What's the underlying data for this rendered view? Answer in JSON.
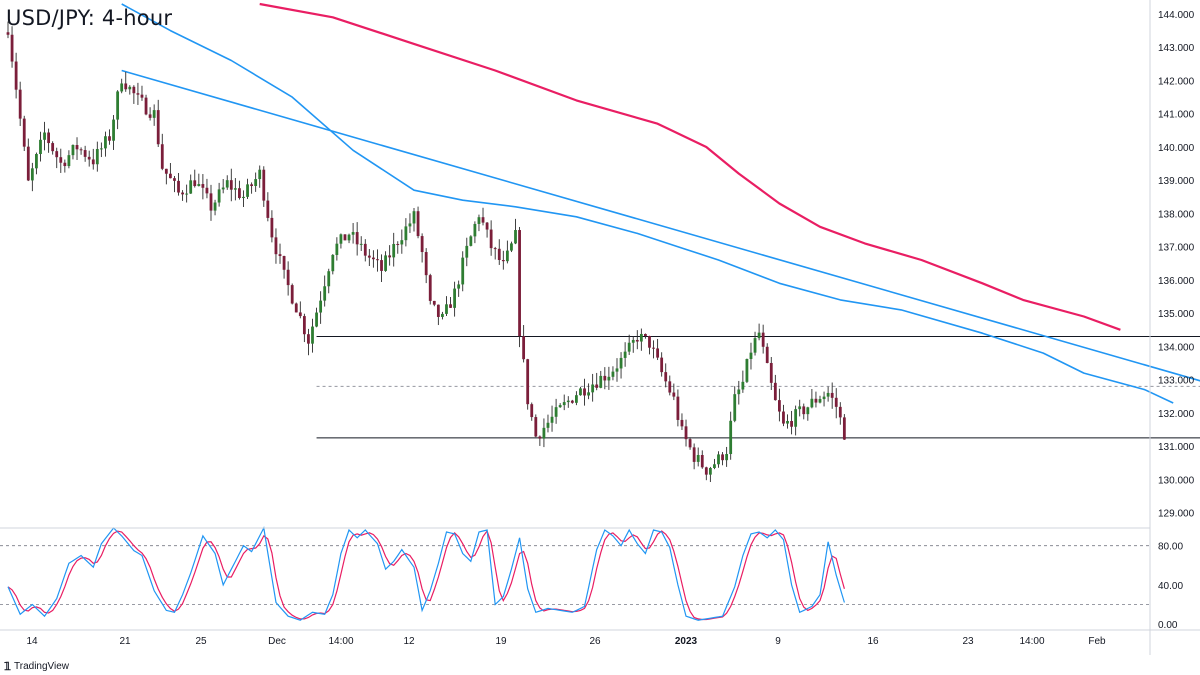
{
  "chart_title": "USD/JPY: 4-hour",
  "watermark": "TradingView",
  "colors": {
    "bull": "#26a69a",
    "bear": "#ef5350",
    "bull_body": "#2e7d32",
    "bear_body": "#7b1e3a",
    "wick": "#333333",
    "ma_slow": "#e91e63",
    "ma_fast": "#2196f3",
    "trendline": "#2196f3",
    "stoch_k": "#2196f3",
    "stoch_d": "#e91e63",
    "level": "#131722"
  },
  "chart_data": [
    {
      "type": "candlestick",
      "title": "USD/JPY: 4-hour",
      "ylim": [
        128.6,
        144.3
      ],
      "y_ticks": [
        "144.000",
        "143.000",
        "142.000",
        "141.000",
        "140.000",
        "139.000",
        "138.000",
        "137.000",
        "136.000",
        "135.000",
        "134.000",
        "133.000",
        "132.000",
        "131.000",
        "130.000",
        "129.000"
      ],
      "x_tick_labels": [
        "14",
        "21",
        "25",
        "Dec",
        "14:00",
        "12",
        "19",
        "26",
        "2023",
        "9",
        "16",
        "23",
        "14:00",
        "Feb"
      ],
      "bold_x_labels": [
        "2023"
      ],
      "close_path": [
        [
          0,
          143.6
        ],
        [
          2,
          141.8
        ],
        [
          5,
          138.9
        ],
        [
          9,
          140.4
        ],
        [
          13,
          139.5
        ],
        [
          17,
          140.0
        ],
        [
          21,
          139.6
        ],
        [
          25,
          140.3
        ],
        [
          28,
          142.1
        ],
        [
          32,
          141.4
        ],
        [
          36,
          141.0
        ],
        [
          38,
          139.4
        ],
        [
          42,
          138.6
        ],
        [
          46,
          139.0
        ],
        [
          50,
          138.2
        ],
        [
          54,
          138.9
        ],
        [
          58,
          138.5
        ],
        [
          62,
          139.2
        ],
        [
          65,
          137.4
        ],
        [
          68,
          136.1
        ],
        [
          71,
          135.2
        ],
        [
          74,
          134.2
        ],
        [
          77,
          135.5
        ],
        [
          80,
          136.9
        ],
        [
          84,
          137.4
        ],
        [
          88,
          136.8
        ],
        [
          92,
          136.3
        ],
        [
          96,
          137.2
        ],
        [
          100,
          137.9
        ],
        [
          102,
          136.8
        ],
        [
          104,
          135.2
        ],
        [
          107,
          134.8
        ],
        [
          110,
          135.6
        ],
        [
          113,
          136.9
        ],
        [
          116,
          138.0
        ],
        [
          119,
          137.0
        ],
        [
          122,
          136.4
        ],
        [
          125,
          137.3
        ],
        [
          126,
          134.5
        ],
        [
          128,
          132.4
        ],
        [
          130,
          131.3
        ],
        [
          133,
          131.7
        ],
        [
          136,
          132.1
        ],
        [
          140,
          132.6
        ],
        [
          144,
          132.9
        ],
        [
          148,
          133.2
        ],
        [
          152,
          133.7
        ],
        [
          155,
          134.3
        ],
        [
          158,
          134.1
        ],
        [
          161,
          133.2
        ],
        [
          164,
          132.4
        ],
        [
          166,
          131.4
        ],
        [
          169,
          130.7
        ],
        [
          172,
          130.3
        ],
        [
          175,
          130.6
        ],
        [
          177,
          130.9
        ],
        [
          179,
          132.4
        ],
        [
          181,
          132.9
        ],
        [
          183,
          133.9
        ],
        [
          185,
          134.4
        ],
        [
          187,
          133.3
        ],
        [
          189,
          132.3
        ],
        [
          191,
          131.6
        ],
        [
          194,
          131.9
        ],
        [
          197,
          132.2
        ],
        [
          200,
          132.5
        ],
        [
          202,
          132.6
        ],
        [
          204,
          132.2
        ],
        [
          206,
          131.4
        ]
      ],
      "n_candles": 207,
      "overlays": [
        {
          "name": "",
          "color": "#e91e63",
          "points": [
            [
              62,
              144.3
            ],
            [
              80,
              143.9
            ],
            [
              100,
              143.1
            ],
            [
              120,
              142.3
            ],
            [
              140,
              141.4
            ],
            [
              160,
              140.7
            ],
            [
              172,
              140.0
            ],
            [
              180,
              139.2
            ],
            [
              190,
              138.3
            ],
            [
              200,
              137.6
            ],
            [
              211,
              137.1
            ],
            [
              225,
              136.6
            ],
            [
              240,
              135.9
            ],
            [
              250,
              135.4
            ],
            [
              265,
              134.9
            ],
            [
              274,
              134.5
            ]
          ]
        },
        {
          "name": "",
          "color": "#2196f3",
          "points": [
            [
              28,
              144.3
            ],
            [
              40,
              143.5
            ],
            [
              55,
              142.6
            ],
            [
              70,
              141.5
            ],
            [
              85,
              139.9
            ],
            [
              100,
              138.7
            ],
            [
              112,
              138.4
            ],
            [
              125,
              138.2
            ],
            [
              140,
              137.9
            ],
            [
              155,
              137.4
            ],
            [
              165,
              137.0
            ],
            [
              175,
              136.6
            ],
            [
              190,
              135.9
            ],
            [
              205,
              135.4
            ],
            [
              220,
              135.1
            ],
            [
              240,
              134.4
            ],
            [
              255,
              133.8
            ],
            [
              265,
              133.2
            ],
            [
              280,
              132.7
            ],
            [
              287,
              132.3
            ]
          ]
        }
      ],
      "trendline": {
        "from": [
          28,
          142.3
        ],
        "to": [
          324,
          131.9
        ]
      },
      "levels": [
        {
          "value": 134.3,
          "x_start": 76,
          "x_end": 324,
          "style": "solid"
        },
        {
          "value": 132.8,
          "x_start": 76,
          "x_end": 324,
          "style": "dashed"
        },
        {
          "value": 131.25,
          "x_start": 76,
          "x_end": 324,
          "style": "solid"
        }
      ]
    },
    {
      "type": "line",
      "title": "",
      "ylim": [
        -4,
        96
      ],
      "y_ticks": [
        "80.00",
        "40.00",
        "0.00"
      ],
      "guide_lines": [
        80,
        20
      ],
      "series": [
        {
          "name": "",
          "color": "#2196f3",
          "role": "k"
        },
        {
          "name": "",
          "color": "#e91e63",
          "role": "d"
        }
      ],
      "k_path": [
        [
          0,
          38
        ],
        [
          3,
          10
        ],
        [
          6,
          20
        ],
        [
          9,
          8
        ],
        [
          12,
          26
        ],
        [
          15,
          62
        ],
        [
          18,
          70
        ],
        [
          21,
          58
        ],
        [
          23,
          82
        ],
        [
          26,
          98
        ],
        [
          28,
          90
        ],
        [
          31,
          75
        ],
        [
          33,
          70
        ],
        [
          36,
          34
        ],
        [
          39,
          14
        ],
        [
          41,
          12
        ],
        [
          43,
          30
        ],
        [
          45,
          52
        ],
        [
          48,
          90
        ],
        [
          51,
          72
        ],
        [
          53,
          40
        ],
        [
          55,
          56
        ],
        [
          58,
          80
        ],
        [
          60,
          74
        ],
        [
          63,
          98
        ],
        [
          66,
          22
        ],
        [
          69,
          8
        ],
        [
          72,
          4
        ],
        [
          75,
          12
        ],
        [
          78,
          10
        ],
        [
          80,
          30
        ],
        [
          82,
          72
        ],
        [
          84,
          96
        ],
        [
          86,
          88
        ],
        [
          88,
          96
        ],
        [
          91,
          82
        ],
        [
          93,
          56
        ],
        [
          95,
          64
        ],
        [
          97,
          76
        ],
        [
          100,
          58
        ],
        [
          102,
          14
        ],
        [
          104,
          34
        ],
        [
          106,
          62
        ],
        [
          108,
          94
        ],
        [
          110,
          92
        ],
        [
          112,
          72
        ],
        [
          114,
          64
        ],
        [
          116,
          94
        ],
        [
          118,
          96
        ],
        [
          120,
          20
        ],
        [
          122,
          28
        ],
        [
          124,
          56
        ],
        [
          126,
          88
        ],
        [
          128,
          36
        ],
        [
          130,
          12
        ],
        [
          133,
          16
        ],
        [
          136,
          14
        ],
        [
          139,
          12
        ],
        [
          142,
          18
        ],
        [
          145,
          76
        ],
        [
          147,
          96
        ],
        [
          149,
          90
        ],
        [
          151,
          80
        ],
        [
          153,
          96
        ],
        [
          155,
          82
        ],
        [
          157,
          72
        ],
        [
          159,
          96
        ],
        [
          161,
          94
        ],
        [
          163,
          78
        ],
        [
          165,
          40
        ],
        [
          167,
          8
        ],
        [
          170,
          4
        ],
        [
          173,
          6
        ],
        [
          176,
          8
        ],
        [
          179,
          38
        ],
        [
          181,
          70
        ],
        [
          183,
          92
        ],
        [
          185,
          94
        ],
        [
          187,
          88
        ],
        [
          189,
          96
        ],
        [
          191,
          86
        ],
        [
          193,
          40
        ],
        [
          195,
          12
        ],
        [
          198,
          18
        ],
        [
          200,
          30
        ],
        [
          202,
          84
        ],
        [
          204,
          50
        ],
        [
          206,
          22
        ]
      ]
    }
  ]
}
